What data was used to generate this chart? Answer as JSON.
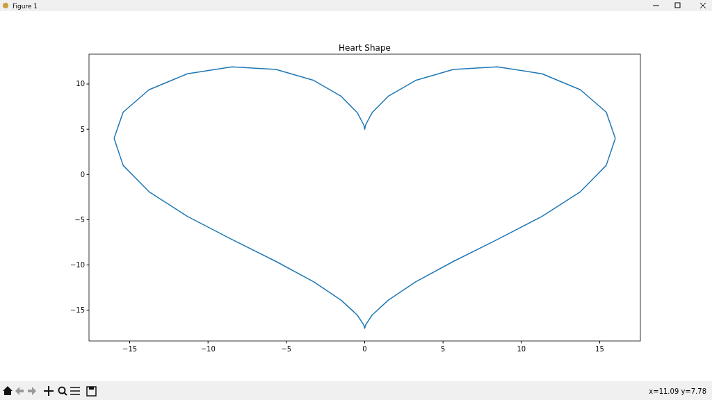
{
  "chart_data": {
    "type": "line",
    "title": "Heart Shape",
    "annotations": [
      "Figure 1",
      "x=11.09 y=7.78"
    ],
    "series": [
      {
        "color": "#1f77b4",
        "x": [
          -16,
          -15.42,
          -13.77,
          -11.32,
          -8.47,
          -5.66,
          -3.25,
          -1.5,
          -0.47,
          -0.06,
          0,
          0.06,
          0.47,
          1.5,
          3.25,
          5.66,
          8.47,
          11.32,
          13.77,
          15.42,
          16
        ],
        "values": [
          4,
          6.89,
          9.37,
          11.13,
          11.9,
          11.61,
          10.4,
          8.64,
          6.83,
          5.49,
          5,
          5.49,
          6.83,
          8.64,
          10.4,
          11.61,
          11.9,
          11.13,
          9.37,
          6.89,
          4
        ]
      },
      {
        "color": "#1f77b4",
        "x": [
          -16,
          -15.42,
          -13.77,
          -11.32,
          -8.47,
          -5.66,
          -3.25,
          -1.5,
          -0.47,
          -0.06,
          0,
          0.06,
          0.47,
          1.5,
          3.25,
          5.66,
          8.47,
          11.32,
          13.77,
          15.42,
          16
        ],
        "values": [
          4,
          1.01,
          -1.9,
          -4.63,
          -7.19,
          -9.61,
          -11.87,
          -13.9,
          -15.54,
          -16.62,
          -17,
          -16.62,
          -15.54,
          -13.9,
          -11.87,
          -9.61,
          -7.19,
          -4.63,
          -1.9,
          1.01,
          4
        ]
      }
    ],
    "xlim": [
      -17.6,
      17.6
    ],
    "xticks": [
      {
        "value": -15,
        "label": "−15"
      },
      {
        "value": -10,
        "label": "−10"
      },
      {
        "value": -5,
        "label": "−5"
      },
      0,
      5,
      10,
      15
    ],
    "ylim": [
      -18.4,
      13.3
    ],
    "yticks": [
      {
        "value": -15,
        "label": "−15"
      },
      {
        "value": -10,
        "label": "−10"
      },
      {
        "value": -5,
        "label": "−5"
      },
      0,
      5,
      10
    ]
  }
}
